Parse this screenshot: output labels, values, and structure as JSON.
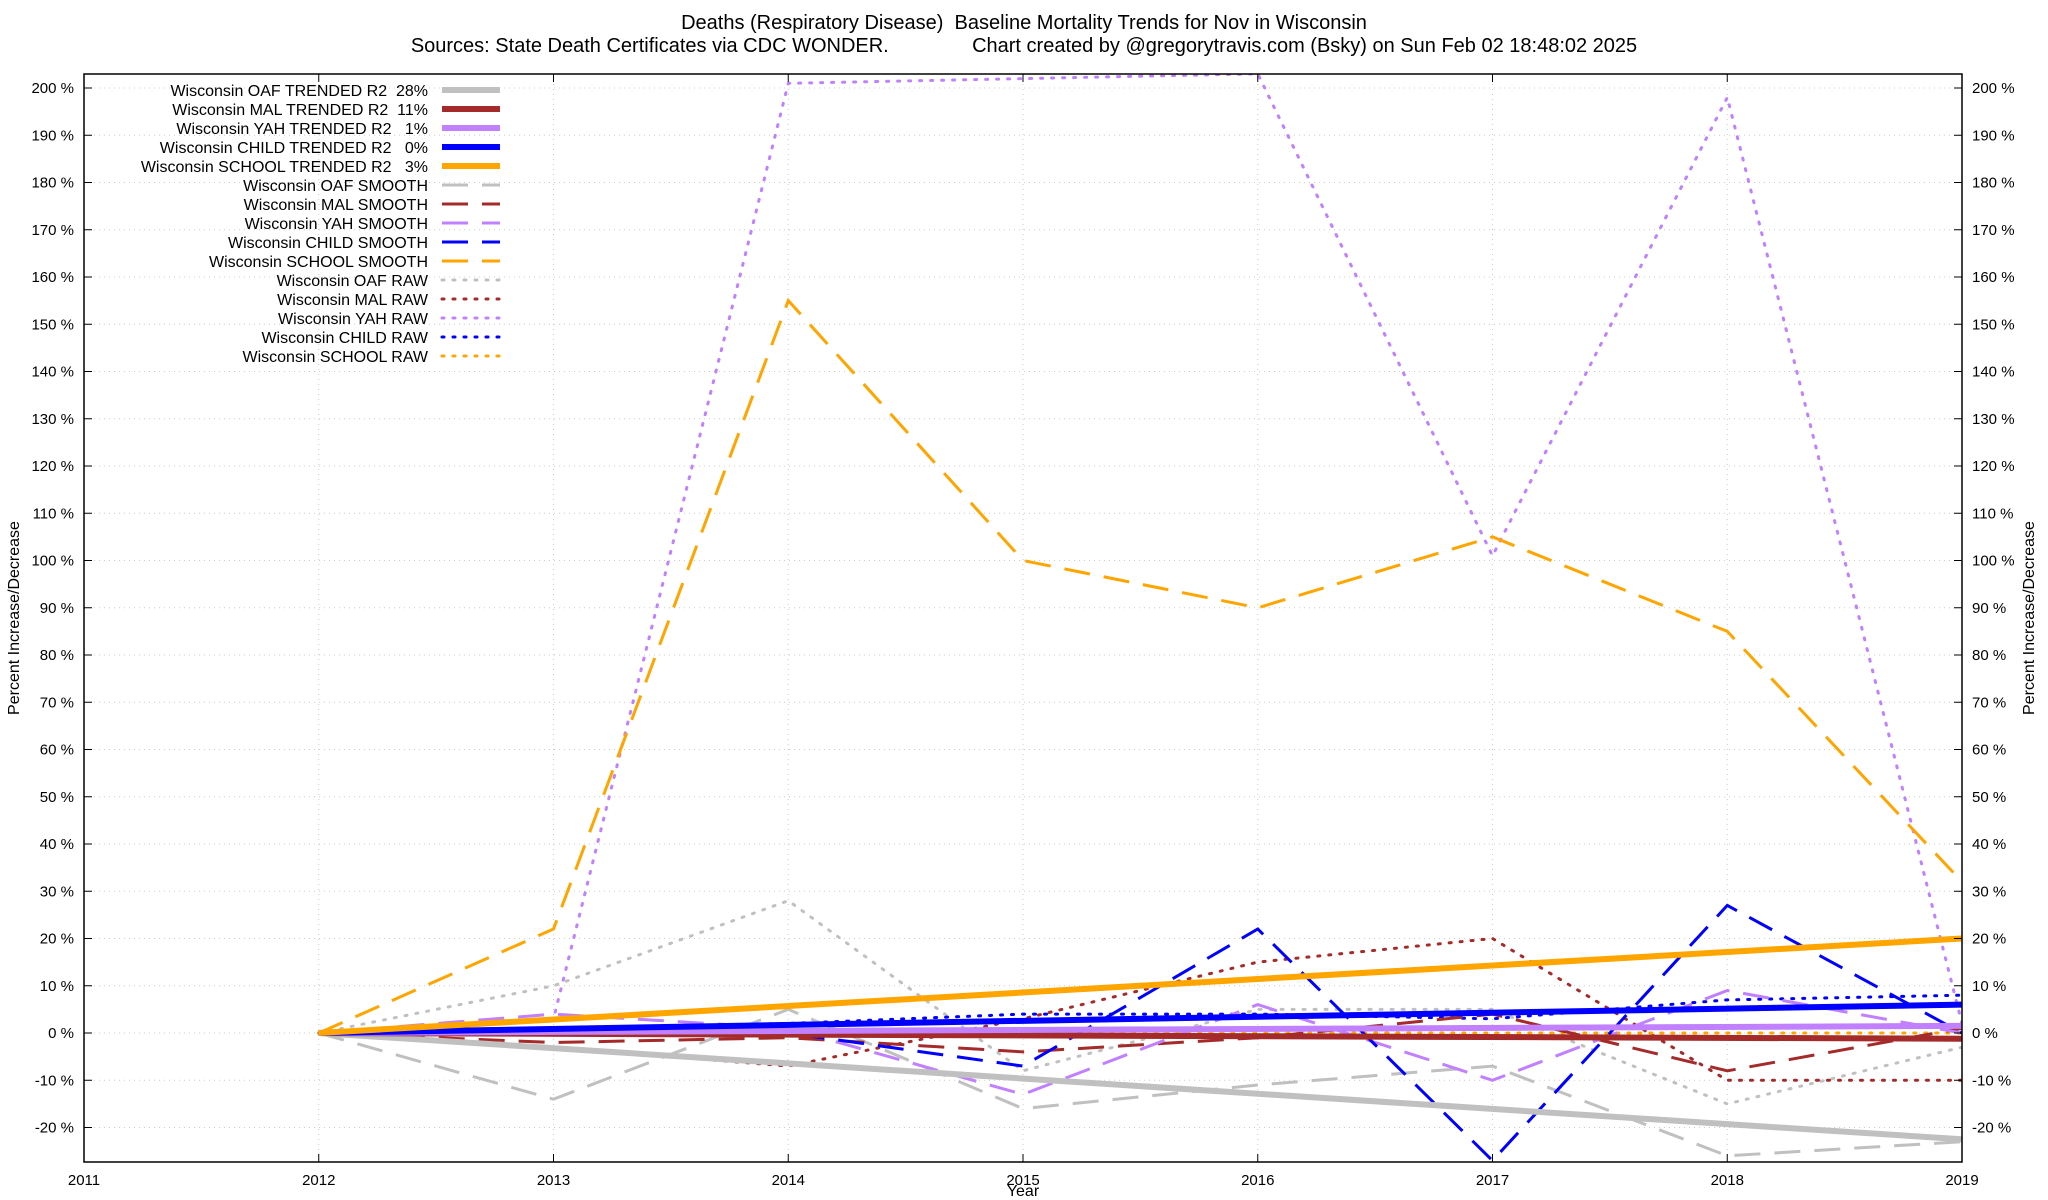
{
  "chart_data": {
    "type": "line",
    "title": "Deaths (Respiratory Disease)  Baseline Mortality Trends for Nov in Wisconsin",
    "subtitle": "Sources: State Death Certificates via CDC WONDER.               Chart created by @gregorytravis.com (Bsky) on Sun Feb 02 18:48:02 2025",
    "xlabel": "Year",
    "ylabel": "Percent Increase/Decrease",
    "ylabel_right": "Percent Increase/Decrease",
    "xlim": [
      2011,
      2019
    ],
    "ylim": [
      -27,
      200
    ],
    "x_ticks": [
      "2011",
      "2012",
      "2013",
      "2014",
      "2015",
      "2016",
      "2017",
      "2018",
      "2019"
    ],
    "y_ticks": [
      "-20 %",
      "-10 %",
      "0 %",
      "10 %",
      "20 %",
      "30 %",
      "40 %",
      "50 %",
      "60 %",
      "70 %",
      "80 %",
      "90 %",
      "100 %",
      "110 %",
      "120 %",
      "130 %",
      "140 %",
      "150 %",
      "160 %",
      "170 %",
      "180 %",
      "190 %",
      "200 %"
    ],
    "grid": true,
    "legend_position": "top-left",
    "series": [
      {
        "name": "Wisconsin OAF TRENDED R2  28%",
        "style": "solid",
        "color": "#c0c0c0",
        "x": [
          2012,
          2019
        ],
        "y": [
          0,
          -22.5
        ]
      },
      {
        "name": "Wisconsin MAL TRENDED R2  11%",
        "style": "solid",
        "color": "#a52a2a",
        "x": [
          2012,
          2019
        ],
        "y": [
          0,
          -1.2
        ]
      },
      {
        "name": "Wisconsin YAH TRENDED R2   1%",
        "style": "solid",
        "color": "#c080ff",
        "x": [
          2012,
          2019
        ],
        "y": [
          0,
          1.5
        ]
      },
      {
        "name": "Wisconsin CHILD TRENDED R2   0%",
        "style": "solid",
        "color": "#0000ff",
        "x": [
          2012,
          2019
        ],
        "y": [
          0,
          6
        ]
      },
      {
        "name": "Wisconsin SCHOOL TRENDED R2   3%",
        "style": "solid",
        "color": "#ffa500",
        "x": [
          2012,
          2019
        ],
        "y": [
          0,
          20
        ]
      },
      {
        "name": "Wisconsin OAF SMOOTH",
        "style": "dashed",
        "color": "#c0c0c0",
        "x": [
          2012,
          2013,
          2014,
          2015,
          2016,
          2017,
          2018,
          2019
        ],
        "y": [
          0,
          -14,
          5,
          -16,
          -11,
          -7,
          -26,
          -23
        ]
      },
      {
        "name": "Wisconsin MAL SMOOTH",
        "style": "dashed",
        "color": "#a52a2a",
        "x": [
          2012,
          2013,
          2014,
          2015,
          2016,
          2017,
          2018,
          2019
        ],
        "y": [
          0,
          -2,
          -1,
          -4,
          -1,
          4,
          -8,
          1
        ]
      },
      {
        "name": "Wisconsin YAH SMOOTH",
        "style": "dashed",
        "color": "#c080ff",
        "x": [
          2012,
          2013,
          2014,
          2015,
          2016,
          2017,
          2018,
          2019
        ],
        "y": [
          0,
          4,
          1,
          -13,
          6,
          -10,
          9,
          0
        ]
      },
      {
        "name": "Wisconsin CHILD SMOOTH",
        "style": "dashed",
        "color": "#0000ff",
        "x": [
          2012,
          2013,
          2014,
          2015,
          2016,
          2017,
          2018,
          2019
        ],
        "y": [
          0,
          1,
          0,
          -7,
          22,
          -27,
          27,
          0
        ]
      },
      {
        "name": "Wisconsin SCHOOL SMOOTH",
        "style": "dashed",
        "color": "#ffa500",
        "x": [
          2012,
          2013,
          2014,
          2015,
          2016,
          2017,
          2018,
          2019
        ],
        "y": [
          0,
          22,
          155,
          100,
          90,
          105,
          85,
          32
        ]
      },
      {
        "name": "Wisconsin OAF RAW",
        "style": "dotted",
        "color": "#c0c0c0",
        "x": [
          2012,
          2013,
          2014,
          2015,
          2016,
          2017,
          2018,
          2019
        ],
        "y": [
          0,
          10,
          28,
          -8,
          5,
          5,
          -15,
          -3
        ]
      },
      {
        "name": "Wisconsin MAL RAW",
        "style": "dotted",
        "color": "#a52a2a",
        "x": [
          2012,
          2013,
          2014,
          2015,
          2016,
          2017,
          2018,
          2019
        ],
        "y": [
          0,
          -3,
          -7,
          3,
          15,
          20,
          -10,
          -10
        ]
      },
      {
        "name": "Wisconsin YAH RAW",
        "style": "dotted",
        "color": "#c080ff",
        "x": [
          2012,
          2013,
          2014,
          2015,
          2016,
          2017,
          2018,
          2019
        ],
        "y": [
          0,
          3,
          201,
          202,
          203,
          101,
          198,
          2
        ]
      },
      {
        "name": "Wisconsin CHILD RAW",
        "style": "dotted",
        "color": "#0000ff",
        "x": [
          2012,
          2013,
          2014,
          2015,
          2016,
          2017,
          2018,
          2019
        ],
        "y": [
          0,
          1,
          2,
          4,
          4,
          3,
          7,
          8
        ]
      },
      {
        "name": "Wisconsin SCHOOL RAW",
        "style": "dotted",
        "color": "#ffa500",
        "x": [
          2012,
          2013,
          2014,
          2015,
          2016,
          2017,
          2018,
          2019
        ],
        "y": [
          0,
          0,
          0,
          0,
          0,
          0,
          0,
          0
        ]
      }
    ]
  }
}
